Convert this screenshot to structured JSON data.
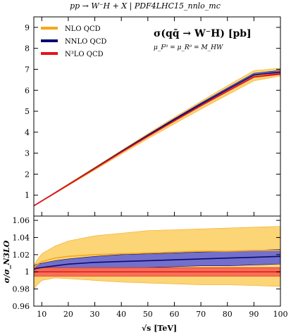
{
  "chart_data": {
    "type": "line",
    "title": "pp → W⁻H + X | PDF4LHC15_nnlo_mc",
    "xlabel": "√s [TeV]",
    "annotation": {
      "process": "σ(qq̄ → W⁻H) [pb]",
      "scale": "μ_F⁰ = μ_R⁰ = M_HW"
    },
    "xlim": [
      7,
      100
    ],
    "top": {
      "ylim": [
        0,
        9.5
      ],
      "yticks": [
        1,
        2,
        3,
        4,
        5,
        6,
        7,
        8,
        9
      ],
      "x": [
        7,
        10,
        15,
        20,
        30,
        40,
        50,
        60,
        70,
        80,
        90,
        100
      ],
      "series": [
        {
          "name": "NLO QCD",
          "color": "#f8a61a",
          "values": [
            0.49,
            0.72,
            1.1,
            1.49,
            2.26,
            3.04,
            3.8,
            4.54,
            5.26,
            5.97,
            6.66,
            6.9
          ],
          "band_low": [
            0.48,
            0.7,
            1.07,
            1.45,
            2.2,
            2.95,
            3.69,
            4.4,
            5.1,
            5.78,
            6.45,
            6.68
          ],
          "band_high": [
            0.5,
            0.74,
            1.13,
            1.53,
            2.33,
            3.13,
            3.93,
            4.71,
            5.47,
            6.22,
            6.94,
            7.05
          ]
        },
        {
          "name": "NNLO QCD",
          "color": "#0a0a6e",
          "values": [
            0.49,
            0.72,
            1.11,
            1.5,
            2.28,
            3.07,
            3.84,
            4.6,
            5.33,
            6.04,
            6.73,
            6.87
          ],
          "band_low": [
            0.485,
            0.715,
            1.1,
            1.49,
            2.26,
            3.04,
            3.8,
            4.55,
            5.27,
            5.97,
            6.65,
            6.79
          ],
          "band_high": [
            0.495,
            0.725,
            1.12,
            1.51,
            2.3,
            3.1,
            3.88,
            4.65,
            5.39,
            6.11,
            6.81,
            6.95
          ]
        },
        {
          "name": "N³LO QCD",
          "color": "#e8121a",
          "values": [
            0.49,
            0.72,
            1.1,
            1.49,
            2.26,
            3.04,
            3.8,
            4.54,
            5.26,
            5.96,
            6.64,
            6.78
          ],
          "band_low": [
            0.488,
            0.717,
            1.095,
            1.485,
            2.25,
            3.03,
            3.78,
            4.52,
            5.24,
            5.93,
            6.61,
            6.75
          ],
          "band_high": [
            0.492,
            0.723,
            1.105,
            1.495,
            2.27,
            3.05,
            3.82,
            4.56,
            5.28,
            5.99,
            6.67,
            6.81
          ]
        }
      ]
    },
    "ratio": {
      "ylabel": "σ/σ_N3LO",
      "ylim": [
        0.96,
        1.065
      ],
      "yticks": [
        0.96,
        0.98,
        1,
        1.02,
        1.04,
        1.06
      ],
      "xticks": [
        10,
        20,
        30,
        40,
        50,
        60,
        70,
        80,
        90,
        100
      ],
      "x": [
        7,
        8,
        10,
        15,
        20,
        30,
        40,
        50,
        60,
        70,
        80,
        90,
        100
      ],
      "series": [
        {
          "name": "NLO QCD",
          "color": "#f8a61a",
          "values": [
            1.005,
            1.008,
            1.012,
            1.016,
            1.018,
            1.02,
            1.021,
            1.022,
            1.023,
            1.024,
            1.024,
            1.025,
            1.025
          ],
          "band_low": [
            0.979,
            0.984,
            0.99,
            0.993,
            0.992,
            0.99,
            0.988,
            0.987,
            0.986,
            0.985,
            0.985,
            0.984,
            0.983
          ],
          "band_high": [
            1.008,
            1.013,
            1.021,
            1.03,
            1.036,
            1.042,
            1.045,
            1.048,
            1.049,
            1.05,
            1.051,
            1.052,
            1.053
          ]
        },
        {
          "name": "NNLO QCD",
          "color": "#0a0a6e",
          "values": [
            1.003,
            1.004,
            1.005,
            1.007,
            1.009,
            1.011,
            1.012,
            1.013,
            1.014,
            1.015,
            1.016,
            1.017,
            1.018
          ],
          "band_low": [
            0.998,
            0.999,
            1.0,
            1.001,
            1.002,
            1.003,
            1.004,
            1.005,
            1.006,
            1.007,
            1.007,
            1.008,
            1.009
          ],
          "band_high": [
            1.007,
            1.009,
            1.01,
            1.013,
            1.015,
            1.018,
            1.02,
            1.021,
            1.022,
            1.023,
            1.024,
            1.025,
            1.026
          ]
        },
        {
          "name": "N³LO QCD",
          "color": "#e8121a",
          "values": [
            1,
            1,
            1,
            1,
            1,
            1,
            1,
            1,
            1,
            1,
            1,
            1,
            1
          ],
          "band_low": [
            0.995,
            0.995,
            0.995,
            0.995,
            0.995,
            0.995,
            0.995,
            0.995,
            0.995,
            0.995,
            0.995,
            0.995,
            0.995
          ],
          "band_high": [
            1.005,
            1.005,
            1.005,
            1.005,
            1.005,
            1.005,
            1.005,
            1.005,
            1.005,
            1.005,
            1.005,
            1.005,
            1.005
          ]
        }
      ]
    },
    "legend_position": "top-left",
    "grid": false
  }
}
